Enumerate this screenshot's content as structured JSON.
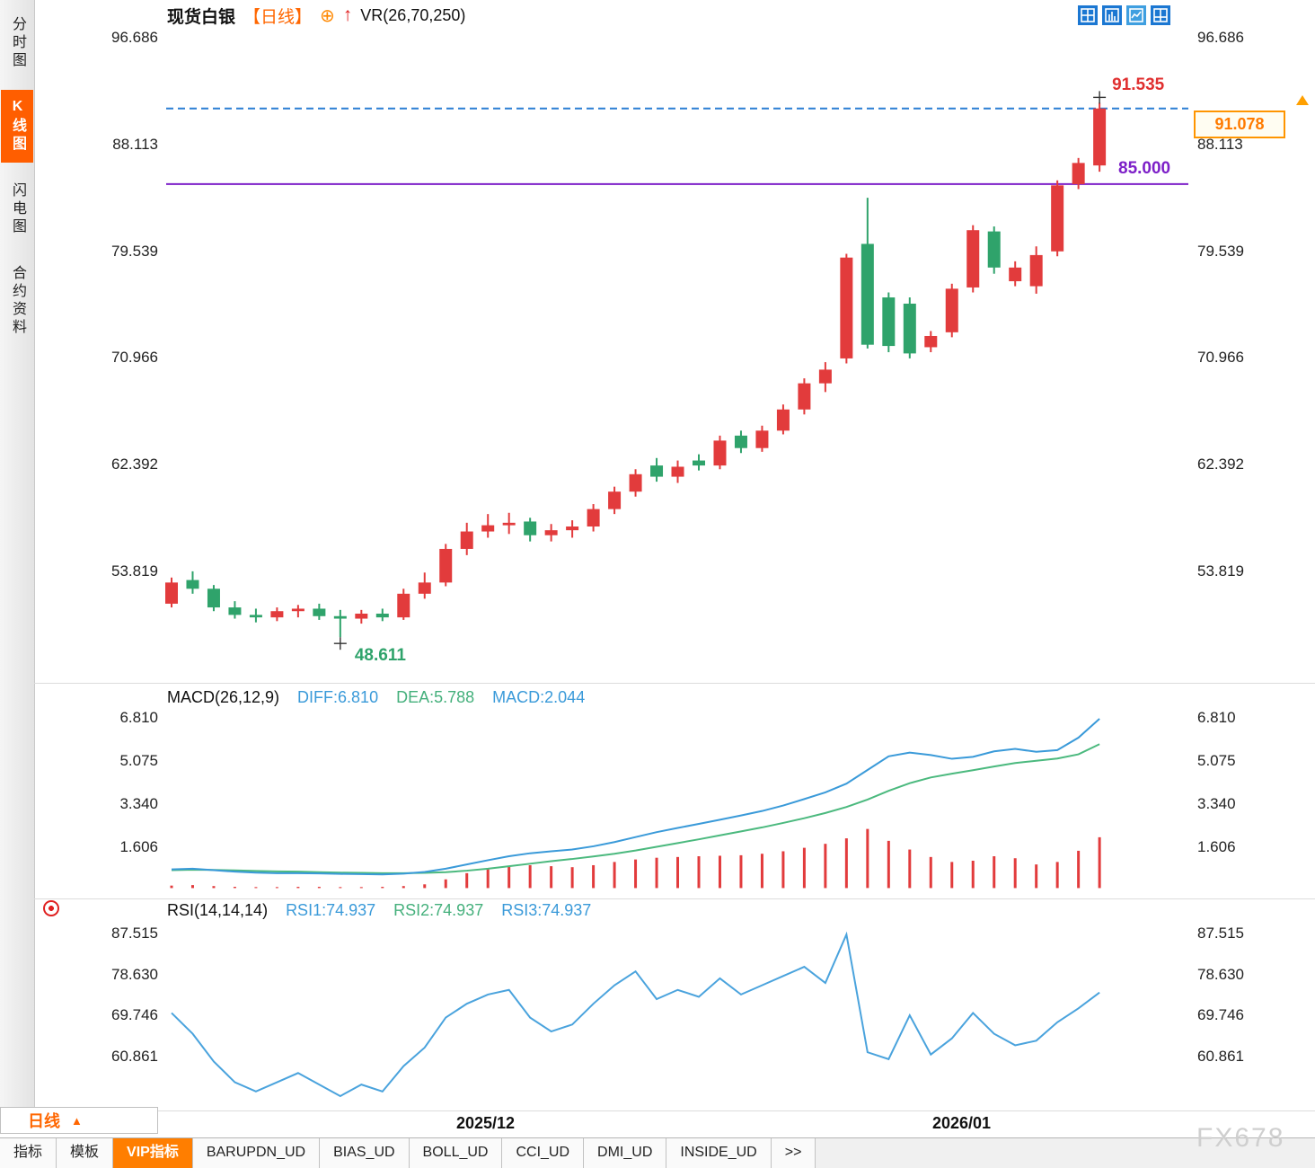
{
  "window": {
    "watermark": "FX678"
  },
  "sidebar": {
    "items": [
      {
        "label": "分时图",
        "name": "sidebar-item-time-chart",
        "selected": false
      },
      {
        "label": "K线图",
        "name": "sidebar-item-kline-chart",
        "selected": true
      },
      {
        "label": "闪电图",
        "name": "sidebar-item-flash-chart",
        "selected": false
      },
      {
        "label": "合约资料",
        "name": "sidebar-item-contract-info",
        "selected": false
      }
    ]
  },
  "header": {
    "symbol": "现货白银",
    "period_tag": "【日线】",
    "add_icon": "⊕",
    "trend_icon": "↑",
    "vr": "VR(26,70,250)"
  },
  "toolbar": {
    "icons": [
      "multi-window-icon",
      "bar-panel-icon",
      "kline-panel-icon",
      "split-view-icon"
    ]
  },
  "macd_header": {
    "title": "MACD(26,12,9)",
    "diff": "DIFF:6.810",
    "dea": "DEA:5.788",
    "macd": "MACD:2.044"
  },
  "rsi_header": {
    "title": "RSI(14,14,14)",
    "rsi1": "RSI1:74.937",
    "rsi2": "RSI2:74.937",
    "rsi3": "RSI3:74.937"
  },
  "xaxis": {
    "ticks": [
      "2025/12",
      "2026/01"
    ]
  },
  "period_selector": {
    "label": "日线",
    "arrow": "▲"
  },
  "tabs": {
    "selected": "VIP指标",
    "items": [
      "指标",
      "模板",
      "VIP指标",
      "BARUPDN_UD",
      "BIAS_UD",
      "BOLL_UD",
      "CCI_UD",
      "DMI_UD",
      "INSIDE_UD",
      ">>"
    ]
  },
  "colors": {
    "up": "#e23b3c",
    "down": "#2fa36b",
    "last_price_line": "#2b7fd4",
    "support_line": "#7d20c8",
    "high_label": "#e03030",
    "low_label": "#2fa36b",
    "support_label": "#7d20c8",
    "diff_line": "#3a9ad9",
    "dea_line": "#4bb97e",
    "hist_bar": "#e23b3c",
    "rsi_line": "#4aa3dd",
    "accent_orange": "#ff6600"
  },
  "chart_data": [
    {
      "type": "candlestick",
      "title": "现货白银 日线",
      "ylabel": "price",
      "ylim": [
        44.9,
        97.6
      ],
      "y_ticks": [
        "96.686",
        "88.113",
        "79.539",
        "70.966",
        "62.392",
        "53.819"
      ],
      "x_ticks": [
        "2025/12",
        "2026/01"
      ],
      "grid": false,
      "candles": [
        [
          51.3,
          53.4,
          51.0,
          53.0
        ],
        [
          53.2,
          53.9,
          52.1,
          52.5
        ],
        [
          52.5,
          52.8,
          50.7,
          51.0
        ],
        [
          51.0,
          51.5,
          50.1,
          50.4
        ],
        [
          50.4,
          50.9,
          49.8,
          50.2
        ],
        [
          50.2,
          51.0,
          49.9,
          50.7
        ],
        [
          50.7,
          51.2,
          50.2,
          50.9
        ],
        [
          50.9,
          51.3,
          50.0,
          50.3
        ],
        [
          50.3,
          50.8,
          48.611,
          50.1
        ],
        [
          50.1,
          50.8,
          49.7,
          50.5
        ],
        [
          50.5,
          50.9,
          49.9,
          50.2
        ],
        [
          50.2,
          52.5,
          50.0,
          52.1
        ],
        [
          52.1,
          53.8,
          51.7,
          53.0
        ],
        [
          53.0,
          56.1,
          52.7,
          55.7
        ],
        [
          55.7,
          57.8,
          55.2,
          57.1
        ],
        [
          57.1,
          58.5,
          56.6,
          57.6
        ],
        [
          57.6,
          58.6,
          56.9,
          57.8
        ],
        [
          57.9,
          58.2,
          56.3,
          56.8
        ],
        [
          56.8,
          57.7,
          56.3,
          57.2
        ],
        [
          57.2,
          58.0,
          56.6,
          57.5
        ],
        [
          57.5,
          59.3,
          57.1,
          58.9
        ],
        [
          58.9,
          60.7,
          58.5,
          60.3
        ],
        [
          60.3,
          62.1,
          59.9,
          61.7
        ],
        [
          62.4,
          63.0,
          61.1,
          61.5
        ],
        [
          61.5,
          62.8,
          61.0,
          62.3
        ],
        [
          62.8,
          63.3,
          62.0,
          62.4
        ],
        [
          62.4,
          64.8,
          62.1,
          64.4
        ],
        [
          64.8,
          65.2,
          63.4,
          63.8
        ],
        [
          63.8,
          65.6,
          63.5,
          65.2
        ],
        [
          65.2,
          67.3,
          64.9,
          66.9
        ],
        [
          66.9,
          69.4,
          66.5,
          69.0
        ],
        [
          69.0,
          70.7,
          68.3,
          70.1
        ],
        [
          71.0,
          79.4,
          70.6,
          79.1
        ],
        [
          80.2,
          83.9,
          71.8,
          72.1
        ],
        [
          75.9,
          76.3,
          71.5,
          72.0
        ],
        [
          75.4,
          75.9,
          71.0,
          71.4
        ],
        [
          71.9,
          73.2,
          71.5,
          72.8
        ],
        [
          73.1,
          77.0,
          72.7,
          76.6
        ],
        [
          76.7,
          81.7,
          76.3,
          81.3
        ],
        [
          81.2,
          81.6,
          77.8,
          78.3
        ],
        [
          77.2,
          78.8,
          76.8,
          78.3
        ],
        [
          76.8,
          80.0,
          76.2,
          79.3
        ],
        [
          79.6,
          85.3,
          79.2,
          84.9
        ],
        [
          85.0,
          87.1,
          84.6,
          86.7
        ],
        [
          86.5,
          91.535,
          86.0,
          91.078
        ]
      ],
      "overlays": {
        "last_price": "91.078",
        "last_price_line": 91.078,
        "support_line": 85.0,
        "support_label": "85.000",
        "high_label": "91.535",
        "high_value": 91.535,
        "low_label": "48.611",
        "low_value": 48.611
      }
    },
    {
      "type": "line",
      "title": "MACD(26,12,9)",
      "y_ticks": [
        "6.810",
        "5.075",
        "3.340",
        "1.606"
      ],
      "legend": [
        "DIFF",
        "DEA",
        "MACD"
      ],
      "last": {
        "diff": 6.81,
        "dea": 5.788,
        "macd": 2.044
      },
      "series": [
        {
          "name": "DIFF",
          "values": [
            0.75,
            0.78,
            0.72,
            0.66,
            0.62,
            0.6,
            0.6,
            0.59,
            0.57,
            0.56,
            0.55,
            0.58,
            0.65,
            0.78,
            0.95,
            1.12,
            1.28,
            1.4,
            1.48,
            1.55,
            1.68,
            1.85,
            2.05,
            2.25,
            2.42,
            2.58,
            2.75,
            2.92,
            3.1,
            3.32,
            3.58,
            3.85,
            4.2,
            4.75,
            5.3,
            5.45,
            5.35,
            5.2,
            5.28,
            5.5,
            5.6,
            5.48,
            5.55,
            6.05,
            6.81
          ]
        },
        {
          "name": "DEA",
          "values": [
            0.72,
            0.74,
            0.73,
            0.71,
            0.69,
            0.67,
            0.66,
            0.64,
            0.62,
            0.61,
            0.6,
            0.6,
            0.61,
            0.64,
            0.7,
            0.78,
            0.88,
            0.98,
            1.08,
            1.17,
            1.27,
            1.38,
            1.51,
            1.66,
            1.81,
            1.96,
            2.12,
            2.28,
            2.44,
            2.62,
            2.81,
            3.02,
            3.26,
            3.56,
            3.91,
            4.22,
            4.45,
            4.6,
            4.74,
            4.89,
            5.03,
            5.12,
            5.21,
            5.38,
            5.788
          ]
        }
      ],
      "histogram": [
        0.1,
        0.12,
        0.08,
        0.05,
        0.04,
        0.04,
        0.05,
        0.05,
        0.04,
        0.04,
        0.05,
        0.08,
        0.15,
        0.35,
        0.6,
        0.78,
        0.88,
        0.92,
        0.88,
        0.84,
        0.92,
        1.05,
        1.15,
        1.22,
        1.25,
        1.28,
        1.3,
        1.32,
        1.38,
        1.48,
        1.62,
        1.78,
        2.0,
        2.38,
        1.9,
        1.55,
        1.25,
        1.05,
        1.1,
        1.28,
        1.2,
        0.95,
        1.05,
        1.5,
        2.044
      ]
    },
    {
      "type": "line",
      "title": "RSI(14,14,14)",
      "y_ticks": [
        "87.515",
        "78.630",
        "69.746",
        "60.861"
      ],
      "legend": [
        "RSI1",
        "RSI2",
        "RSI3"
      ],
      "last": {
        "rsi1": 74.937,
        "rsi2": 74.937,
        "rsi3": 74.937
      },
      "series": [
        {
          "name": "RSI1",
          "values": [
            70.5,
            66.0,
            60.0,
            55.5,
            53.5,
            55.5,
            57.5,
            55.0,
            52.5,
            55.0,
            53.5,
            59.0,
            63.0,
            69.5,
            72.5,
            74.5,
            75.5,
            69.5,
            66.5,
            68.0,
            72.5,
            76.5,
            79.5,
            73.5,
            75.5,
            74.0,
            78.0,
            74.5,
            76.5,
            78.5,
            80.5,
            77.0,
            87.5,
            62.0,
            60.5,
            70.0,
            61.5,
            65.0,
            70.5,
            66.0,
            63.5,
            64.5,
            68.5,
            71.5,
            74.937
          ]
        }
      ]
    }
  ]
}
